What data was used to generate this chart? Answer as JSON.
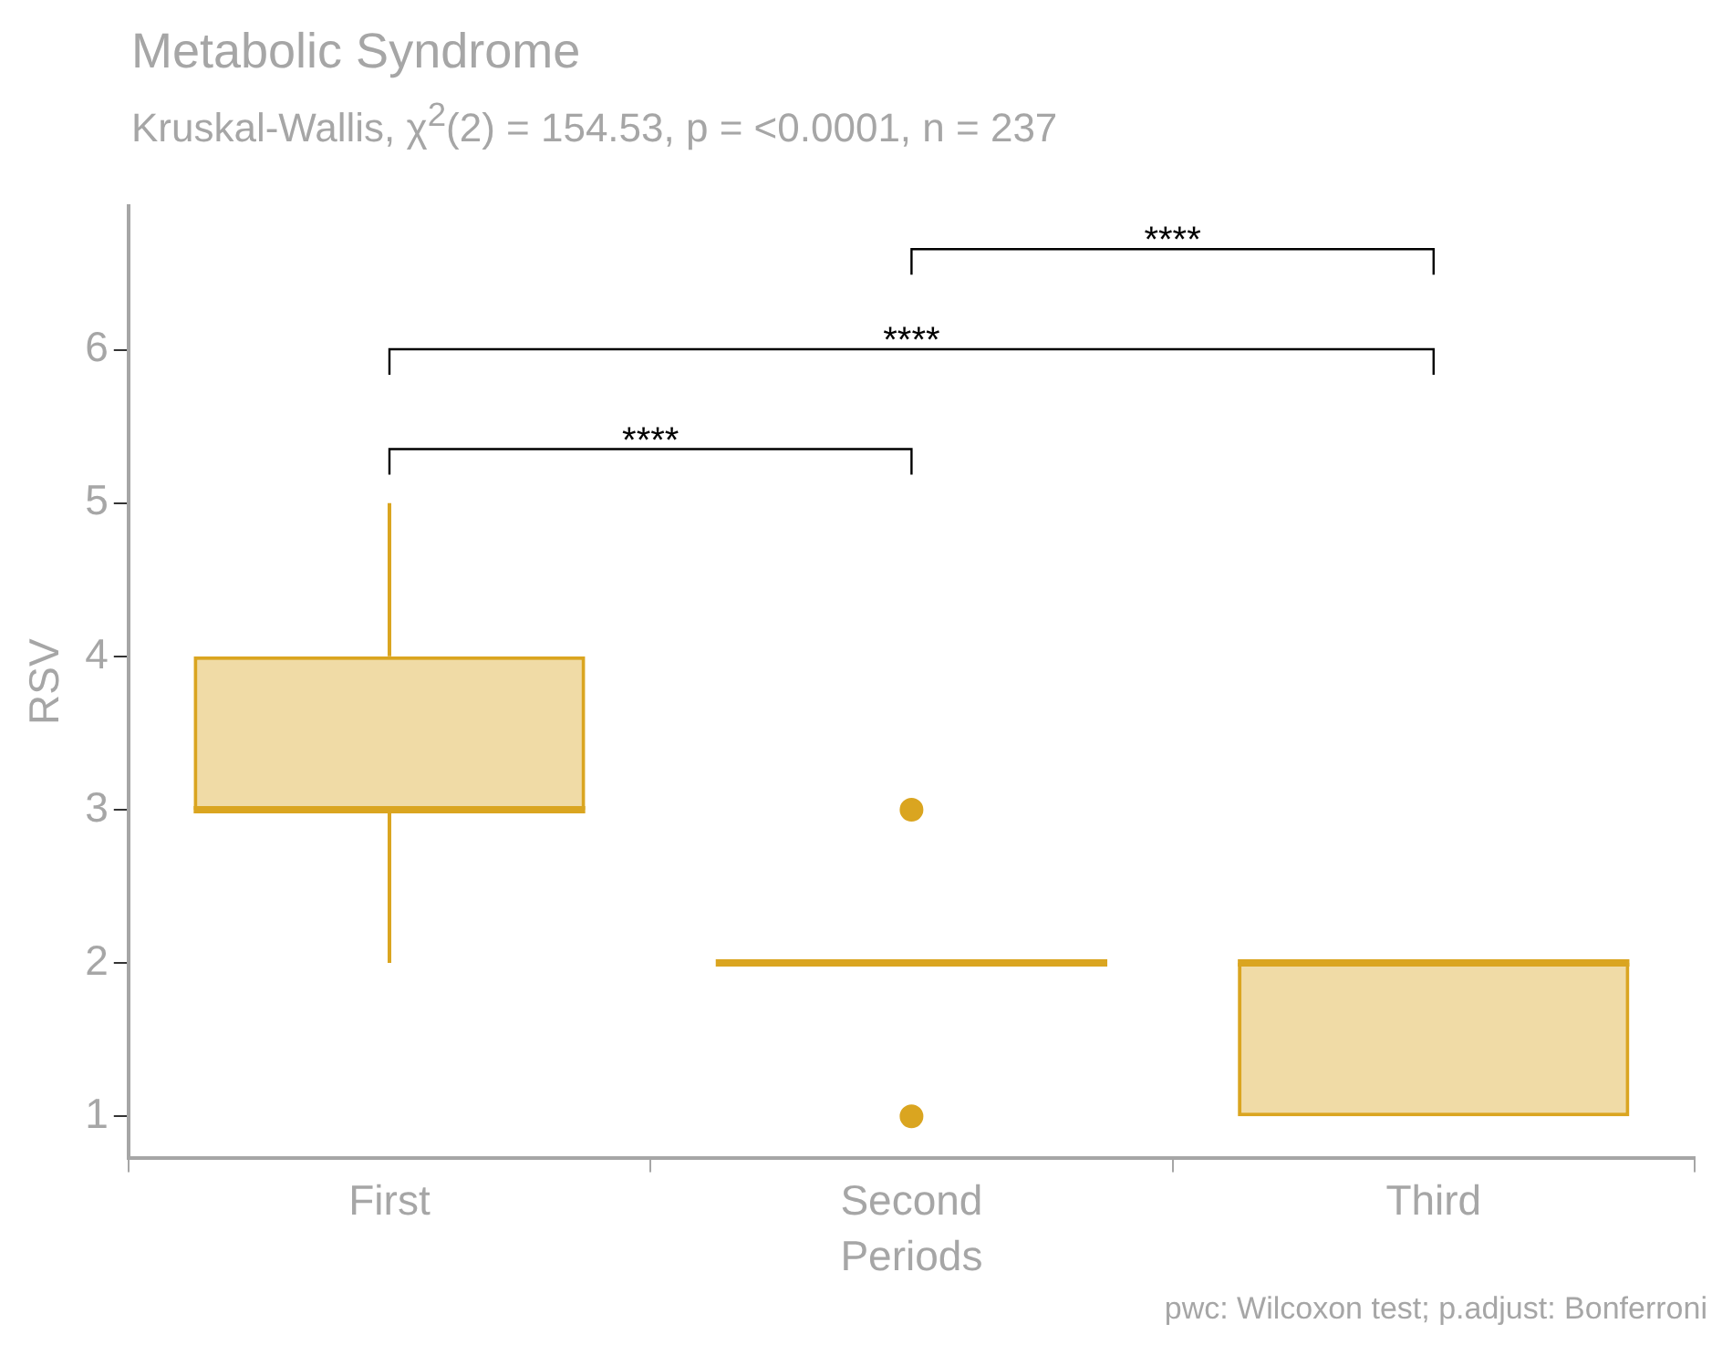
{
  "chart_data": {
    "type": "box",
    "title": "Metabolic Syndrome",
    "subtitle": "Kruskal-Wallis, χ$^{2}$(2) = 154.53, p = <0.0001, n = 237",
    "xlabel": "Periods",
    "ylabel": "RSV",
    "categories": [
      "First",
      "Second",
      "Third"
    ],
    "color": "#daa520",
    "boxes": [
      {
        "low": 2,
        "q1": 3,
        "median": 3,
        "q3": 4,
        "high": 5
      },
      {
        "low": 2,
        "q1": 2,
        "median": 2,
        "q3": 2,
        "high": 2,
        "outliers": [
          1,
          3
        ]
      },
      {
        "low": 1,
        "q1": 1,
        "median": 2,
        "q3": 2,
        "high": 2
      }
    ],
    "ylim": [
      0.73,
      6.94
    ],
    "yticks": [
      1,
      2,
      3,
      4,
      5,
      6
    ],
    "annotations": [
      "****",
      "****",
      "****",
      "pwc: Wilcoxon test; p.adjust: Bonferroni"
    ]
  }
}
